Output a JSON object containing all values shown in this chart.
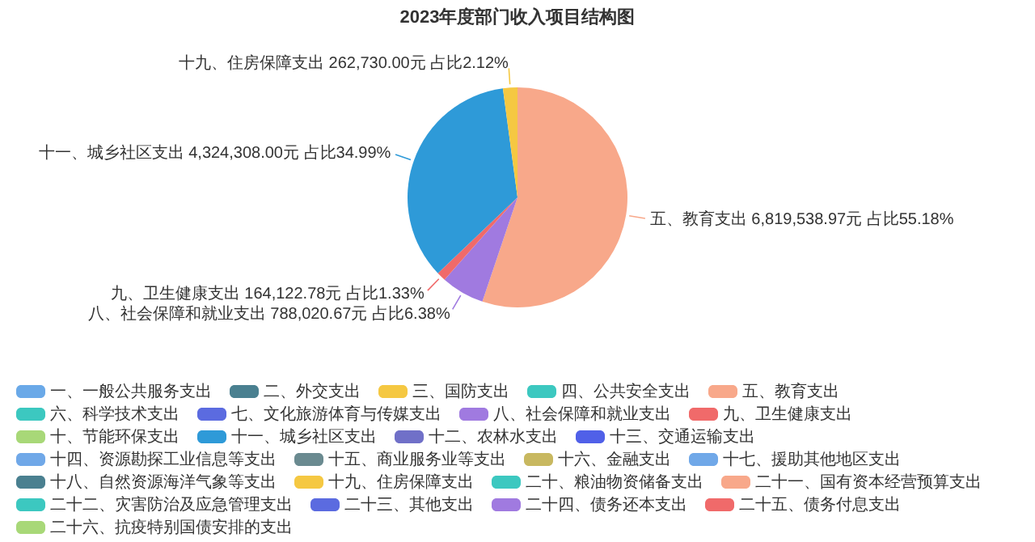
{
  "chart_data": {
    "type": "pie",
    "title": "2023年度部门收入项目结构图",
    "categories": [
      "一、一般公共服务支出",
      "二、外交支出",
      "三、国防支出",
      "四、公共安全支出",
      "五、教育支出",
      "六、科学技术支出",
      "七、文化旅游体育与传媒支出",
      "八、社会保障和就业支出",
      "九、卫生健康支出",
      "十、节能环保支出",
      "十一、城乡社区支出",
      "十二、农林水支出",
      "十三、交通运输支出",
      "十四、资源勘探工业信息等支出",
      "十五、商业服务业等支出",
      "十六、金融支出",
      "十七、援助其他地区支出",
      "十八、自然资源海洋气象等支出",
      "十九、住房保障支出",
      "二十、粮油物资储备支出",
      "二十一、国有资本经营预算支出",
      "二十二、灾害防治及应急管理支出",
      "二十三、其他支出",
      "二十四、债务还本支出",
      "二十五、债务付息支出",
      "二十六、抗疫特别国债安排的支出"
    ],
    "values": [
      0,
      0,
      0,
      0,
      6819538.97,
      0,
      0,
      788020.67,
      164122.78,
      0,
      4324308.0,
      0,
      0,
      0,
      0,
      0,
      0,
      0,
      262730.0,
      0,
      0,
      0,
      0,
      0,
      0,
      0
    ],
    "value_labels": [
      null,
      null,
      null,
      null,
      "五、教育支出 6,819,538.97元 占比55.18%",
      null,
      null,
      "八、社会保障和就业支出 788,020.67元 占比6.38%",
      "九、卫生健康支出 164,122.78元 占比1.33%",
      null,
      "十一、城乡社区支出 4,324,308.00元 占比34.99%",
      null,
      null,
      null,
      null,
      null,
      null,
      null,
      "十九、住房保障支出 262,730.00元 占比2.12%",
      null,
      null,
      null,
      null,
      null,
      null,
      null
    ],
    "colors": [
      "#6aa9e8",
      "#4a8090",
      "#f5c842",
      "#3cc8c0",
      "#f8a88a",
      "#3cc8c0",
      "#5b6be0",
      "#a07ae0",
      "#f06a6a",
      "#a8d878",
      "#2e9ad8",
      "#7070c8",
      "#5060e8",
      "#70a8e8",
      "#6a8a90",
      "#c8b860",
      "#70a8e8",
      "#4a8090",
      "#f5c842",
      "#3cc8c0",
      "#f8a88a",
      "#3cc8c0",
      "#5b6be0",
      "#a07ae0",
      "#f06a6a",
      "#a8d878"
    ],
    "legend": "bottom"
  }
}
